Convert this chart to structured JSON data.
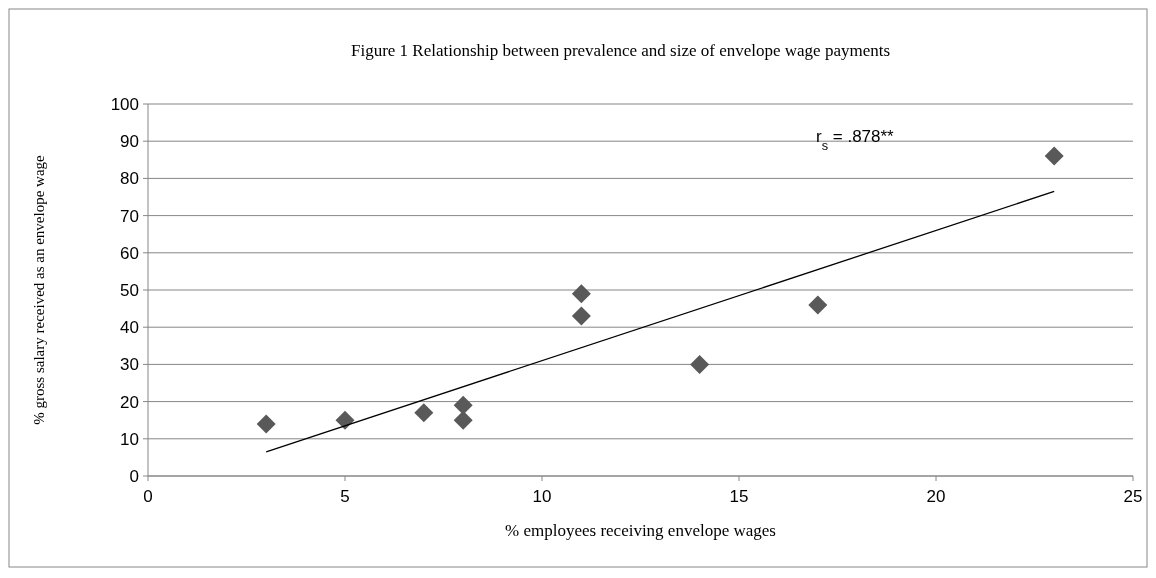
{
  "chart_data": {
    "type": "scatter",
    "title": "Figure 1 Relationship between prevalence and size of envelope wage payments",
    "xlabel": "% employees receiving envelope wages",
    "ylabel": "% gross salary received as an envelope wage",
    "series": [
      {
        "color": "#595959",
        "marker": "diamond",
        "x": [
          3,
          5,
          7,
          8,
          8,
          11,
          11,
          14,
          17,
          23
        ],
        "values": [
          14,
          15,
          17,
          19,
          15,
          49,
          43,
          30,
          46,
          86
        ]
      },
      {
        "type": "line",
        "color": "#000000",
        "x": [
          3,
          23
        ],
        "values": [
          6.5,
          76.5
        ]
      }
    ],
    "xlim": [
      0,
      25
    ],
    "xticks": [
      0,
      5,
      10,
      15,
      20,
      25
    ],
    "ylim": [
      0,
      100
    ],
    "yticks": [
      0,
      10,
      20,
      30,
      40,
      50,
      60,
      70,
      80,
      90,
      100
    ],
    "grid": "y",
    "annotations": [
      "r$_{s}$ = .878**"
    ]
  }
}
